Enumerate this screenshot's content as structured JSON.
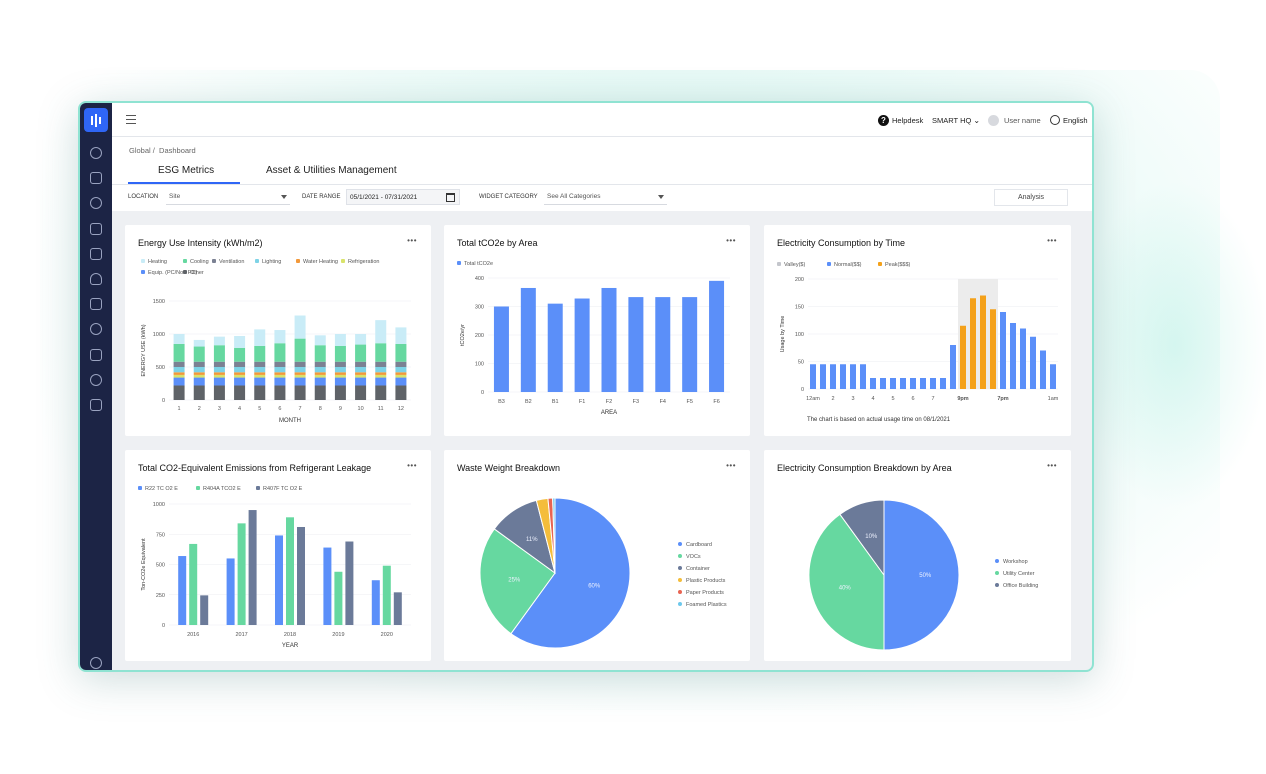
{
  "topbar": {
    "helpdesk": "Helpdesk",
    "site": "SMART HQ",
    "user": "User name",
    "language": "English"
  },
  "breadcrumb": {
    "root": "Global",
    "current": "Dashboard"
  },
  "tabs": [
    {
      "label": "ESG Metrics",
      "active": true
    },
    {
      "label": "Asset & Utilities Management",
      "active": false
    }
  ],
  "filters": {
    "location_label": "LOCATION",
    "location_value": "Site",
    "date_label": "DATE RANGE",
    "date_value": "05/1/2021 - 07/31/2021",
    "category_label": "WIDGET CATEGORY",
    "category_value": "See All Categories",
    "analysis": "Analysis"
  },
  "cards": {
    "energy": {
      "title": "Energy Use Intensity (kWh/m2)"
    },
    "tco2": {
      "title": "Total tCO2e by Area"
    },
    "elec_time": {
      "title": "Electricity Consumption by Time",
      "note": "The chart is based on actual usage time on 08/1/2021"
    },
    "refrigerant": {
      "title": "Total CO2-Equivalent Emissions from Refrigerant Leakage"
    },
    "waste": {
      "title": "Waste Weight Breakdown"
    },
    "elec_area": {
      "title": "Electricity Consumption Breakdown by Area"
    }
  },
  "chart_data": [
    {
      "id": "energy",
      "type": "bar",
      "stacked": true,
      "title": "Energy Use Intensity (kWh/m2)",
      "xlabel": "MONTH",
      "ylabel": "ENERGY USE (kWh)",
      "ylim": [
        0,
        1500
      ],
      "yticks": [
        0,
        500,
        1000,
        1500
      ],
      "categories": [
        "1",
        "2",
        "3",
        "4",
        "5",
        "6",
        "7",
        "8",
        "9",
        "10",
        "11",
        "12"
      ],
      "series": [
        {
          "name": "Other",
          "color": "#5f6368",
          "values": [
            220,
            220,
            220,
            220,
            220,
            220,
            220,
            220,
            220,
            220,
            220,
            220
          ]
        },
        {
          "name": "Equip. (PC/Non PC)",
          "color": "#5b8ff9",
          "values": [
            120,
            120,
            120,
            120,
            120,
            120,
            120,
            120,
            120,
            120,
            120,
            120
          ]
        },
        {
          "name": "Refrigeration",
          "color": "#d9e36b",
          "values": [
            40,
            40,
            40,
            40,
            40,
            40,
            40,
            40,
            40,
            40,
            40,
            40
          ]
        },
        {
          "name": "Water Heating",
          "color": "#f2993a",
          "values": [
            40,
            40,
            40,
            40,
            40,
            40,
            40,
            40,
            40,
            40,
            40,
            40
          ]
        },
        {
          "name": "Lighting",
          "color": "#7ed3e6",
          "values": [
            80,
            80,
            80,
            80,
            80,
            80,
            80,
            80,
            80,
            80,
            80,
            80
          ]
        },
        {
          "name": "Ventilation",
          "color": "#7b8193",
          "values": [
            80,
            80,
            80,
            80,
            80,
            80,
            80,
            80,
            80,
            80,
            80,
            80
          ]
        },
        {
          "name": "Cooling",
          "color": "#66d8a0",
          "values": [
            270,
            230,
            250,
            210,
            240,
            280,
            350,
            250,
            240,
            260,
            280,
            270
          ]
        },
        {
          "name": "Heating",
          "color": "#c9ecf7",
          "values": [
            150,
            100,
            130,
            180,
            250,
            200,
            350,
            150,
            180,
            160,
            350,
            250
          ]
        }
      ]
    },
    {
      "id": "tco2",
      "type": "bar",
      "title": "Total tCO2e by Area",
      "xlabel": "AREA",
      "ylabel": "tCO2e/yr",
      "ylim": [
        0,
        400
      ],
      "yticks": [
        0,
        100,
        200,
        300,
        400
      ],
      "categories": [
        "B3",
        "B2",
        "B1",
        "F1",
        "F2",
        "F3",
        "F4",
        "F5",
        "F6"
      ],
      "series": [
        {
          "name": "Total tCO2e",
          "color": "#5b8ff9",
          "values": [
            300,
            365,
            310,
            328,
            365,
            333,
            333,
            333,
            390
          ]
        }
      ]
    },
    {
      "id": "elec_time",
      "type": "bar",
      "title": "Electricity Consumption by Time",
      "ylabel": "Usage by Time",
      "ylim": [
        0,
        200
      ],
      "yticks": [
        0,
        50,
        100,
        150,
        200
      ],
      "xticks": [
        "12am",
        "2",
        "3",
        "4",
        "5",
        "6",
        "7",
        "9pm",
        "7pm",
        "1am"
      ],
      "legend": [
        "Valley($)",
        "Normal($$)",
        "Peak($$$)"
      ],
      "values": [
        45,
        45,
        45,
        45,
        45,
        45,
        20,
        20,
        20,
        20,
        20,
        20,
        20,
        20,
        80,
        115,
        165,
        170,
        145,
        140,
        120,
        110,
        95,
        70,
        45
      ],
      "colors": [
        "normal",
        "normal",
        "normal",
        "normal",
        "normal",
        "normal",
        "normal",
        "normal",
        "normal",
        "normal",
        "normal",
        "normal",
        "normal",
        "normal",
        "normal",
        "peak",
        "peak",
        "peak",
        "peak",
        "normal",
        "normal",
        "normal",
        "normal",
        "normal",
        "normal"
      ]
    },
    {
      "id": "refrigerant",
      "type": "bar",
      "title": "Total CO2-Equivalent Emissions from Refrigerant Leakage",
      "xlabel": "YEAR",
      "ylabel": "Ton-CO2e Equivalent",
      "ylim": [
        0,
        1000
      ],
      "yticks": [
        0,
        250,
        500,
        750,
        1000
      ],
      "categories": [
        "2016",
        "2017",
        "2018",
        "2019",
        "2020"
      ],
      "series": [
        {
          "name": "R22 TC O2 E",
          "color": "#5b8ff9",
          "values": [
            570,
            550,
            740,
            640,
            370
          ]
        },
        {
          "name": "R404A TCO2 E",
          "color": "#66d8a0",
          "values": [
            670,
            840,
            890,
            440,
            490
          ]
        },
        {
          "name": "R407F TC O2 E",
          "color": "#6b7a99",
          "values": [
            245,
            950,
            810,
            690,
            270
          ]
        }
      ]
    },
    {
      "id": "waste",
      "type": "pie",
      "title": "Waste Weight Breakdown",
      "labels": [
        "Cardboard",
        "VOCs",
        "Container",
        "Plastic Products",
        "Paper Products",
        "Foamed Plastics"
      ],
      "colors": [
        "#5b8ff9",
        "#66d8a0",
        "#6b7a99",
        "#f4bd3b",
        "#e86452",
        "#6dc8ec"
      ],
      "values": [
        60,
        25,
        11,
        2.5,
        1,
        0.5
      ],
      "slice_labels": [
        "60%",
        "25%",
        "11%",
        "",
        "",
        ""
      ]
    },
    {
      "id": "elec_area",
      "type": "pie",
      "title": "Electricity Consumption Breakdown by Area",
      "labels": [
        "Workshop",
        "Utility Center",
        "Office Building"
      ],
      "colors": [
        "#5b8ff9",
        "#66d8a0",
        "#6b7a99"
      ],
      "values": [
        50,
        40,
        10
      ],
      "slice_labels": [
        "50%",
        "40%",
        "10%"
      ]
    }
  ]
}
